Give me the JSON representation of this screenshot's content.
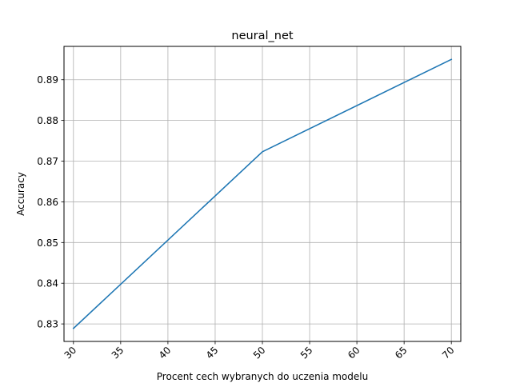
{
  "chart_data": {
    "type": "line",
    "title": "neural_net",
    "xlabel": "Procent cech wybranych do uczenia modelu",
    "ylabel": "Accuracy",
    "x": [
      30,
      50,
      70
    ],
    "series": [
      {
        "values": [
          0.8289,
          0.8723,
          0.895
        ],
        "color": "#1f77b4"
      }
    ],
    "xlim": [
      29,
      71
    ],
    "ylim": [
      0.8257,
      0.8982
    ],
    "xticks": [
      30,
      35,
      40,
      45,
      50,
      55,
      60,
      65,
      70
    ],
    "xtick_labels": [
      "30",
      "35",
      "40",
      "45",
      "50",
      "55",
      "60",
      "65",
      "70"
    ],
    "xtick_rotation": 45,
    "yticks": [
      0.83,
      0.84,
      0.85,
      0.86,
      0.87,
      0.88,
      0.89
    ],
    "ytick_labels": [
      "0.83",
      "0.84",
      "0.85",
      "0.86",
      "0.87",
      "0.88",
      "0.89"
    ],
    "grid": true,
    "grid_color": "#b0b0b0"
  }
}
